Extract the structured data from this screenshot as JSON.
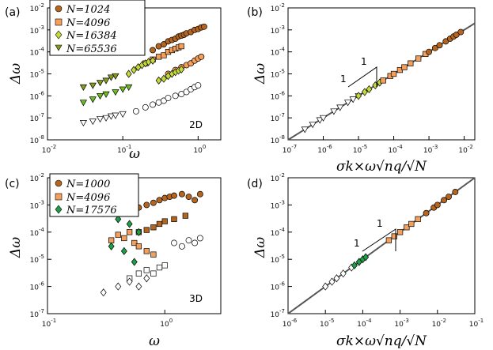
{
  "chart_data": [
    {
      "id": "a",
      "type": "scatter",
      "panel_label": "(a)",
      "dimension_label": "2D",
      "xlabel": "ω",
      "ylabel": "Δω",
      "xscale": "log",
      "yscale": "log",
      "xlim": [
        0.01,
        2
      ],
      "ylim": [
        1e-08,
        0.01
      ],
      "xticks": [
        "10-2",
        "10-1",
        "100"
      ],
      "yticks": [
        "10-8",
        "10-7",
        "10-6",
        "10-5",
        "10-4",
        "10-3",
        "10-2"
      ],
      "legend": [
        "N=1024",
        "N=4096",
        "N=16384",
        "N=65536"
      ],
      "series": [
        {
          "name": "N=1024 high",
          "marker": "circle",
          "color": "#b5651d",
          "x": [
            0.25,
            0.3,
            0.35,
            0.4,
            0.45,
            0.5,
            0.55,
            0.6,
            0.65,
            0.7,
            0.8,
            0.9,
            1.0,
            1.1,
            1.2
          ],
          "y": [
            0.00012,
            0.00018,
            0.00022,
            0.0003,
            0.00035,
            0.0004,
            0.0005,
            0.00055,
            0.0006,
            0.0007,
            0.0008,
            0.001,
            0.0011,
            0.0013,
            0.0014
          ]
        },
        {
          "name": "N=4096 high",
          "marker": "square",
          "color": "#f5a05a",
          "x": [
            0.2,
            0.25,
            0.3,
            0.35,
            0.4,
            0.45,
            0.5,
            0.55,
            0.6
          ],
          "y": [
            3e-05,
            4.5e-05,
            6e-05,
            7e-05,
            0.0001,
            0.00012,
            0.00014,
            0.00016,
            0.00018
          ]
        },
        {
          "name": "N=16384 high",
          "marker": "diamond",
          "color": "#c5d93c",
          "x": [
            0.12,
            0.14,
            0.16,
            0.18,
            0.2,
            0.22,
            0.25
          ],
          "y": [
            1e-05,
            1.5e-05,
            2e-05,
            2.5e-05,
            3e-05,
            3.5e-05,
            4e-05
          ]
        },
        {
          "name": "N=65536 high",
          "marker": "triangle",
          "color": "#8a9a1a",
          "x": [
            0.03,
            0.04,
            0.05,
            0.06,
            0.07,
            0.08
          ],
          "y": [
            2.5e-06,
            3e-06,
            4e-06,
            5e-06,
            7e-06,
            8e-06
          ]
        },
        {
          "name": "N=1024 mid",
          "marker": "circle",
          "color": "#f5a05a",
          "x": [
            0.4,
            0.5,
            0.6,
            0.7,
            0.8,
            0.9,
            1.0,
            1.1
          ],
          "y": [
            1e-05,
            1.5e-05,
            2e-05,
            2.5e-05,
            3e-05,
            4e-05,
            5e-05,
            6e-05
          ]
        },
        {
          "name": "N=4096 mid",
          "marker": "diamond",
          "color": "#c5d93c",
          "x": [
            0.3,
            0.35,
            0.4,
            0.45,
            0.5,
            0.55,
            0.6
          ],
          "y": [
            5e-06,
            6e-06,
            8e-06,
            1e-05,
            1.2e-05,
            1.4e-05,
            1.6e-05
          ]
        },
        {
          "name": "N=65536 mid",
          "marker": "triangle",
          "color": "#6cbf1c",
          "x": [
            0.03,
            0.04,
            0.05,
            0.06,
            0.08,
            0.1,
            0.12
          ],
          "y": [
            5e-07,
            7e-07,
            1e-06,
            1.2e-06,
            1.5e-06,
            2e-06,
            2.5e-06
          ]
        },
        {
          "name": "low",
          "marker": "circle",
          "color": "#ffffff",
          "x": [
            0.15,
            0.2,
            0.25,
            0.3,
            0.35,
            0.4,
            0.5,
            0.6,
            0.7,
            0.8,
            0.9,
            1.0
          ],
          "y": [
            2e-07,
            3e-07,
            4e-07,
            5e-07,
            6e-07,
            8e-07,
            1e-06,
            1.2e-06,
            1.5e-06,
            2e-06,
            2.5e-06,
            3e-06
          ]
        },
        {
          "name": "low2",
          "marker": "triangle",
          "color": "#ffffff",
          "x": [
            0.03,
            0.04,
            0.05,
            0.06,
            0.07,
            0.08,
            0.1
          ],
          "y": [
            6e-08,
            7e-08,
            9e-08,
            1e-07,
            1.2e-07,
            1.3e-07,
            1.5e-07
          ]
        }
      ]
    },
    {
      "id": "b",
      "type": "scatter",
      "panel_label": "(b)",
      "xlabel": "σk×ω√nq/√N",
      "ylabel": "Δω",
      "xscale": "log",
      "yscale": "log",
      "xlim": [
        1e-07,
        0.02
      ],
      "ylim": [
        1e-08,
        0.01
      ],
      "xticks": [
        "10-7",
        "10-6",
        "10-5",
        "10-4",
        "10-3",
        "10-2"
      ],
      "yticks": [
        "10-8",
        "10-7",
        "10-6",
        "10-5",
        "10-4",
        "10-3",
        "10-2"
      ],
      "slope_label": "1",
      "fit_line": {
        "x": [
          1e-07,
          0.02
        ],
        "y": [
          1e-08,
          0.002
        ]
      },
      "series": [
        {
          "name": "black",
          "marker": "triangle",
          "color": "#ffffff",
          "x": [
            3e-07,
            5e-07,
            8e-07,
            1e-06,
            2e-06,
            3e-06,
            5e-06,
            7e-06,
            1e-05
          ],
          "y": [
            3e-08,
            5e-08,
            8e-08,
            1e-07,
            2e-07,
            3e-07,
            5e-07,
            7e-07,
            1e-06
          ]
        },
        {
          "name": "green",
          "marker": "diamond",
          "color": "#c5d93c",
          "x": [
            1e-05,
            1.5e-05,
            2e-05,
            3e-05,
            4e-05
          ],
          "y": [
            1e-06,
            1.5e-06,
            2e-06,
            3e-06,
            4e-06
          ]
        },
        {
          "name": "orange",
          "marker": "square",
          "color": "#f5a05a",
          "x": [
            5e-05,
            8e-05,
            0.0001,
            0.00015,
            0.0002,
            0.0003,
            0.0005,
            0.0008
          ],
          "y": [
            5e-06,
            8e-06,
            1e-05,
            1.5e-05,
            2e-05,
            3e-05,
            5e-05,
            8e-05
          ]
        },
        {
          "name": "brown",
          "marker": "circle",
          "color": "#b5651d",
          "x": [
            0.001,
            0.0015,
            0.002,
            0.003,
            0.004,
            0.005,
            0.006,
            0.008
          ],
          "y": [
            0.0001,
            0.00015,
            0.0002,
            0.0003,
            0.0004,
            0.0005,
            0.0006,
            0.0008
          ]
        }
      ]
    },
    {
      "id": "c",
      "type": "scatter",
      "panel_label": "(c)",
      "dimension_label": "3D",
      "xlabel": "ω",
      "ylabel": "Δω",
      "xscale": "log",
      "yscale": "log",
      "xlim": [
        0.1,
        3
      ],
      "ylim": [
        1e-07,
        0.01
      ],
      "xticks": [
        "10-1",
        "100"
      ],
      "yticks": [
        "10-7",
        "10-6",
        "10-5",
        "10-4",
        "10-3",
        "10-2"
      ],
      "legend": [
        "N=1000",
        "N=4096",
        "N=17576"
      ],
      "series": [
        {
          "name": "N=1000 high",
          "marker": "circle",
          "color": "#b5651d",
          "x": [
            0.6,
            0.7,
            0.8,
            0.9,
            1.0,
            1.1,
            1.2,
            1.4,
            1.6,
            1.8,
            2.0
          ],
          "y": [
            0.0008,
            0.001,
            0.0012,
            0.0015,
            0.0018,
            0.002,
            0.0022,
            0.0025,
            0.002,
            0.0015,
            0.0025
          ]
        },
        {
          "name": "N=1000 mid",
          "marker": "square",
          "color": "#b5651d",
          "x": [
            0.6,
            0.7,
            0.8,
            0.9,
            1.0,
            1.2,
            1.5
          ],
          "y": [
            0.0001,
            0.00012,
            0.00015,
            0.0002,
            0.00025,
            0.0003,
            0.0004
          ]
        },
        {
          "name": "N=4096",
          "marker": "square",
          "color": "#f5a05a",
          "x": [
            0.35,
            0.4,
            0.45,
            0.5,
            0.55,
            0.6,
            0.7,
            0.8
          ],
          "y": [
            5e-05,
            8e-05,
            6e-05,
            0.0001,
            4e-05,
            3e-05,
            2e-05,
            1.5e-05
          ]
        },
        {
          "name": "N=17576",
          "marker": "diamond",
          "color": "#1f9e4a",
          "x": [
            0.25,
            0.3,
            0.35,
            0.4,
            0.45,
            0.5,
            0.55,
            0.6
          ],
          "y": [
            0.0008,
            0.0005,
            3e-05,
            0.0003,
            2e-05,
            0.0002,
            8e-06,
            0.0001
          ]
        },
        {
          "name": "low",
          "marker": "circle",
          "color": "#ffffff",
          "x": [
            1.2,
            1.4,
            1.6,
            1.8,
            2.0
          ],
          "y": [
            4e-05,
            3e-05,
            5e-05,
            4e-05,
            6e-05
          ]
        },
        {
          "name": "low2",
          "marker": "square",
          "color": "#ffffff",
          "x": [
            0.5,
            0.6,
            0.7,
            0.8,
            0.9,
            1.0
          ],
          "y": [
            2e-06,
            3e-06,
            4e-06,
            3e-06,
            5e-06,
            6e-06
          ]
        },
        {
          "name": "low3",
          "marker": "diamond",
          "color": "#ffffff",
          "x": [
            0.3,
            0.4,
            0.5,
            0.6,
            0.7
          ],
          "y": [
            6e-07,
            1e-06,
            1.5e-06,
            1e-06,
            2e-06
          ]
        }
      ]
    },
    {
      "id": "d",
      "type": "scatter",
      "panel_label": "(d)",
      "xlabel": "σk×ω√nq/√N",
      "ylabel": "Δω",
      "xscale": "log",
      "yscale": "log",
      "xlim": [
        1e-06,
        0.1
      ],
      "ylim": [
        1e-07,
        0.01
      ],
      "xticks": [
        "10-6",
        "10-5",
        "10-4",
        "10-3",
        "10-2",
        "10-1"
      ],
      "yticks": [
        "10-7",
        "10-6",
        "10-5",
        "10-4",
        "10-3",
        "10-2"
      ],
      "slope_label": "1",
      "fit_line": {
        "x": [
          1e-06,
          0.1
        ],
        "y": [
          1e-07,
          0.01
        ]
      },
      "series": [
        {
          "name": "black",
          "marker": "diamond",
          "color": "#ffffff",
          "x": [
            1e-05,
            1.5e-05,
            2e-05,
            3e-05,
            5e-05,
            8e-05
          ],
          "y": [
            1e-06,
            1.5e-06,
            2e-06,
            3e-06,
            5e-06,
            8e-06
          ]
        },
        {
          "name": "green",
          "marker": "diamond",
          "color": "#1f9e4a",
          "x": [
            6e-05,
            8e-05,
            0.0001,
            0.00012
          ],
          "y": [
            6e-06,
            8e-06,
            1e-05,
            1.2e-05
          ]
        },
        {
          "name": "orange",
          "marker": "square",
          "color": "#f5a05a",
          "x": [
            0.0005,
            0.0007,
            0.001,
            0.0015,
            0.002,
            0.003
          ],
          "y": [
            5e-05,
            7e-05,
            0.0001,
            0.00015,
            0.0002,
            0.0003
          ]
        },
        {
          "name": "brown",
          "marker": "circle",
          "color": "#b5651d",
          "x": [
            0.005,
            0.008,
            0.01,
            0.015,
            0.02,
            0.03
          ],
          "y": [
            0.0005,
            0.0008,
            0.001,
            0.0015,
            0.002,
            0.003
          ]
        }
      ]
    }
  ]
}
